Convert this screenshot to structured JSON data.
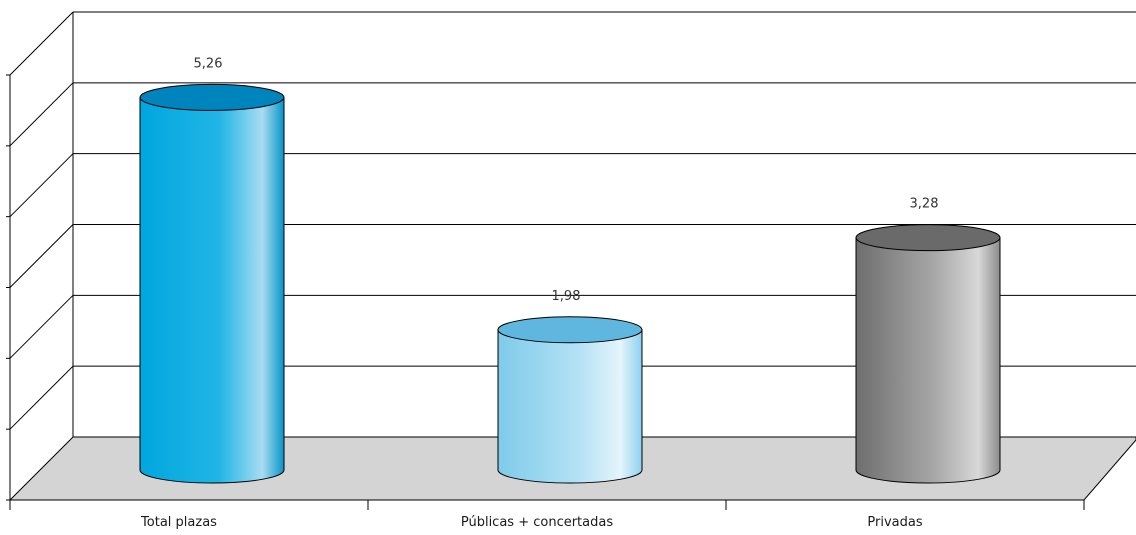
{
  "chart_data": {
    "type": "bar",
    "style": "3d-cylinder",
    "categories": [
      "Total plazas",
      "Públicas + concertadas",
      "Privadas"
    ],
    "values": [
      5.26,
      1.98,
      3.28
    ],
    "value_labels": [
      "5,26",
      "1,98",
      "3,28"
    ],
    "ylim": [
      0,
      6
    ],
    "grid": true,
    "legend": "none",
    "series_colors": [
      "#00a0dc",
      "#7ed0ef",
      "#8a8a8a"
    ],
    "floor_color": "#d4d4d4"
  }
}
